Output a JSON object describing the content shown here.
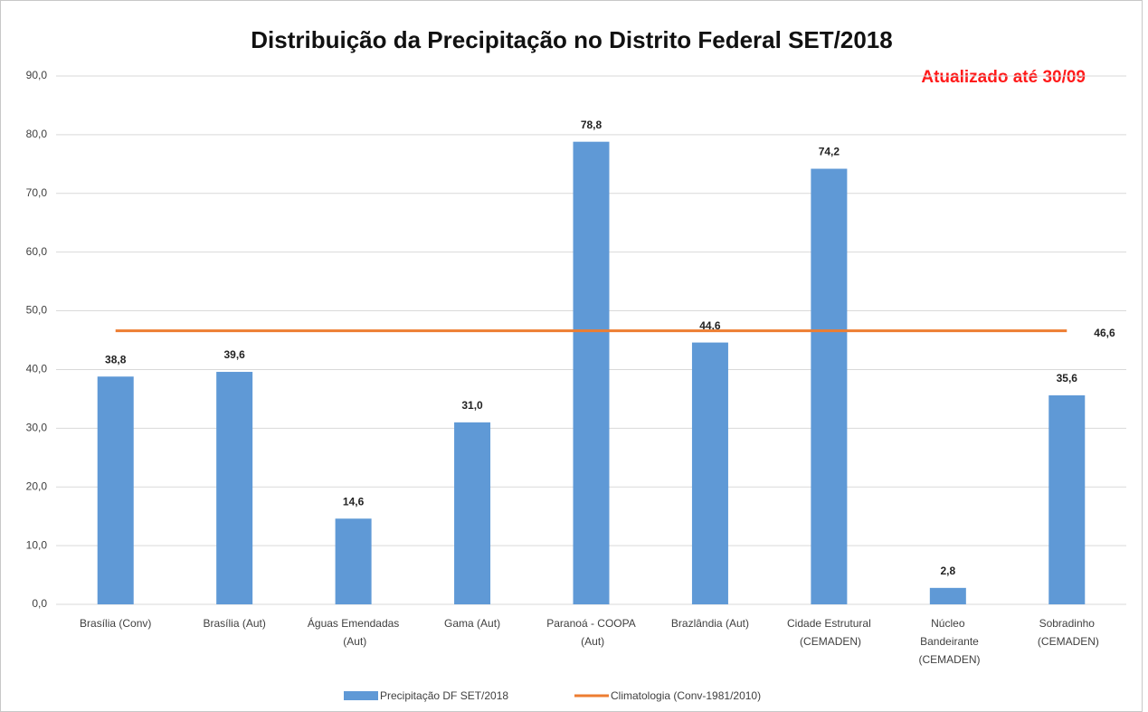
{
  "chart_data": {
    "type": "bar",
    "title": "Distribuição da Precipitação no Distrito Federal SET/2018",
    "subtitle": "Atualizado até 30/09",
    "categories": [
      "Brasília (Conv)",
      "Brasília (Aut)",
      "Águas Emendadas (Aut)",
      "Gama (Aut)",
      "Paranoá - COOPA (Aut)",
      "Brazlândia (Aut)",
      "Cidade Estrutural (CEMADEN)",
      "Núcleo Bandeirante (CEMADEN)",
      "Sobradinho (CEMADEN)"
    ],
    "series": [
      {
        "name": "Precipitação DF SET/2018",
        "type": "bar",
        "color": "#5f99d6",
        "values": [
          38.8,
          39.6,
          14.6,
          31.0,
          78.8,
          44.6,
          74.2,
          2.8,
          35.6
        ],
        "value_labels": [
          "38,8",
          "39,6",
          "14,6",
          "31,0",
          "78,8",
          "44,6",
          "74,2",
          "2,8",
          "35,6"
        ]
      },
      {
        "name": "Climatologia (Conv-1981/2010)",
        "type": "line",
        "color": "#ed7d31",
        "values": [
          46.6,
          46.6,
          46.6,
          46.6,
          46.6,
          46.6,
          46.6,
          46.6,
          46.6
        ],
        "value_labels": [
          null,
          null,
          null,
          null,
          null,
          null,
          null,
          null,
          "46,6"
        ]
      }
    ],
    "ylim": [
      0,
      90
    ],
    "yticks": [
      {
        "value": 0,
        "label": "0,0"
      },
      {
        "value": 10,
        "label": "10,0"
      },
      {
        "value": 20,
        "label": "20,0"
      },
      {
        "value": 30,
        "label": "30,0"
      },
      {
        "value": 40,
        "label": "40,0"
      },
      {
        "value": 50,
        "label": "50,0"
      },
      {
        "value": 60,
        "label": "60,0"
      },
      {
        "value": 70,
        "label": "70,0"
      },
      {
        "value": 80,
        "label": "80,0"
      },
      {
        "value": 90,
        "label": "90,0"
      }
    ],
    "grid": true,
    "legend": "bottom"
  }
}
